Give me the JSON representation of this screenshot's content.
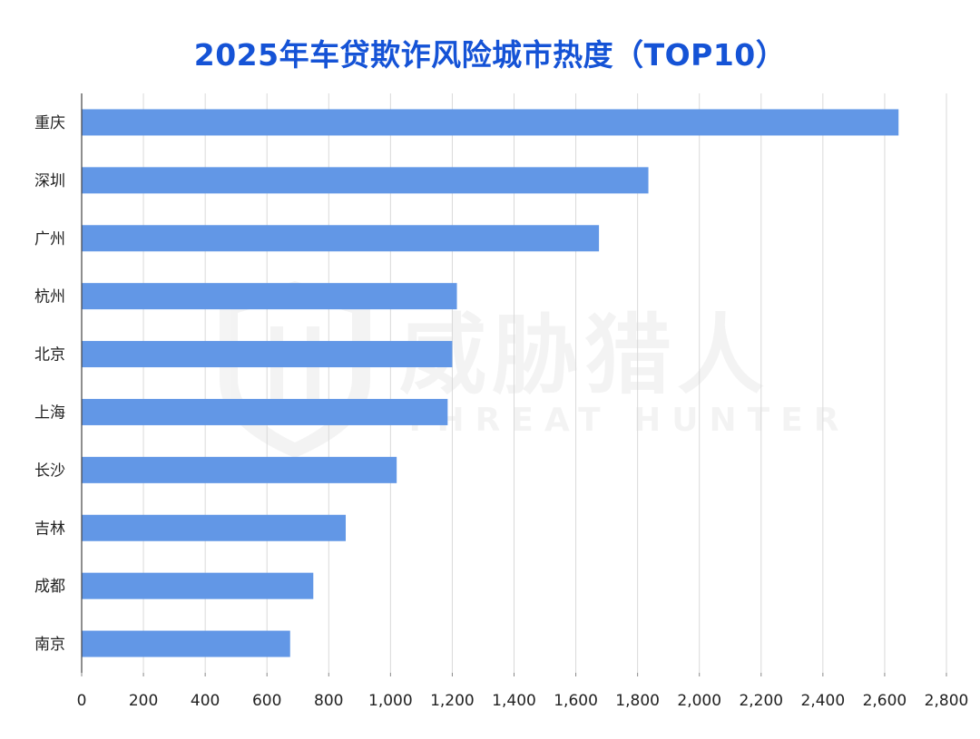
{
  "chart_data": {
    "type": "bar",
    "orientation": "horizontal",
    "title": "2025年车贷欺诈风险城市热度（TOP10）",
    "categories": [
      "重庆",
      "深圳",
      "广州",
      "杭州",
      "北京",
      "上海",
      "长沙",
      "吉林",
      "成都",
      "南京"
    ],
    "values": [
      2645,
      1835,
      1675,
      1215,
      1200,
      1185,
      1020,
      855,
      750,
      675
    ],
    "xlim": [
      0,
      2800
    ],
    "x_ticks": [
      0,
      200,
      400,
      600,
      800,
      1000,
      1200,
      1400,
      1600,
      1800,
      2000,
      2200,
      2400,
      2600,
      2800
    ],
    "x_tick_labels": [
      "0",
      "200",
      "400",
      "600",
      "800",
      "1,000",
      "1,200",
      "1,400",
      "1,600",
      "1,800",
      "2,000",
      "2,200",
      "2,400",
      "2,600",
      "2,800"
    ],
    "xlabel": "",
    "ylabel": "",
    "grid": "vertical",
    "legend": "none",
    "bar_color": "#6297e6"
  },
  "watermark": {
    "text": "威胁猎人",
    "subtext": "THREAT HUNTER"
  }
}
